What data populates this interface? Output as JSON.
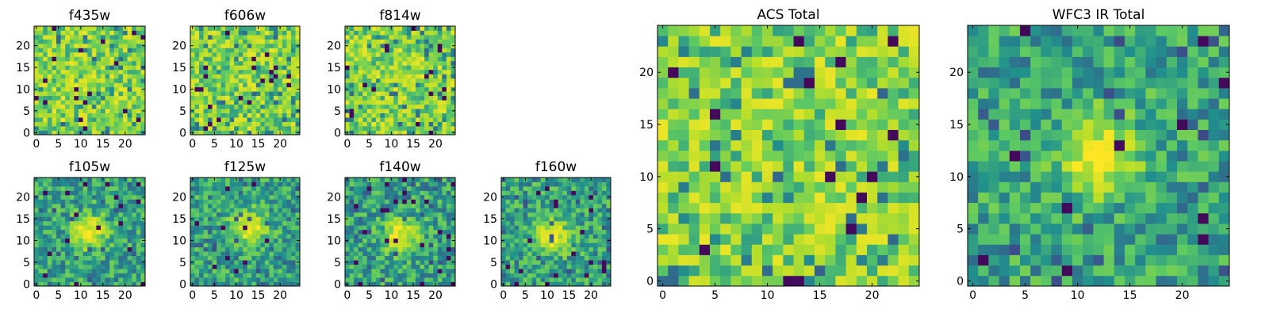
{
  "figure_title": "",
  "chart_data": [
    {
      "type": "heatmap",
      "title": "f435w",
      "grid_size": 25,
      "xticks": [
        0,
        5,
        10,
        15,
        20
      ],
      "yticks": [
        0,
        5,
        10,
        15,
        20
      ],
      "pattern": "noise",
      "seed": 11
    },
    {
      "type": "heatmap",
      "title": "f606w",
      "grid_size": 25,
      "xticks": [
        0,
        5,
        10,
        15,
        20
      ],
      "yticks": [
        0,
        5,
        10,
        15,
        20
      ],
      "pattern": "noise",
      "seed": 23
    },
    {
      "type": "heatmap",
      "title": "f814w",
      "grid_size": 25,
      "xticks": [
        0,
        5,
        10,
        15,
        20
      ],
      "yticks": [
        0,
        5,
        10,
        15,
        20
      ],
      "pattern": "noise",
      "seed": 37
    },
    {
      "type": "heatmap",
      "title": "f105w",
      "grid_size": 25,
      "xticks": [
        0,
        5,
        10,
        15,
        20
      ],
      "yticks": [
        0,
        5,
        10,
        15,
        20
      ],
      "pattern": "source",
      "source_center": [
        12,
        12
      ],
      "seed": 41
    },
    {
      "type": "heatmap",
      "title": "f125w",
      "grid_size": 25,
      "xticks": [
        0,
        5,
        10,
        15,
        20
      ],
      "yticks": [
        0,
        5,
        10,
        15,
        20
      ],
      "pattern": "source",
      "source_center": [
        13,
        13
      ],
      "seed": 53
    },
    {
      "type": "heatmap",
      "title": "f140w",
      "grid_size": 25,
      "xticks": [
        0,
        5,
        10,
        15,
        20
      ],
      "yticks": [
        0,
        5,
        10,
        15,
        20
      ],
      "pattern": "source",
      "source_center": [
        12,
        11
      ],
      "seed": 67
    },
    {
      "type": "heatmap",
      "title": "f160w",
      "grid_size": 25,
      "xticks": [
        0,
        5,
        10,
        15,
        20
      ],
      "yticks": [
        0,
        5,
        10,
        15,
        20
      ],
      "pattern": "source",
      "source_center": [
        11,
        11
      ],
      "seed": 79
    },
    {
      "type": "heatmap",
      "title": "ACS Total",
      "grid_size": 25,
      "xticks": [
        0,
        5,
        10,
        15,
        20
      ],
      "yticks": [
        0,
        5,
        10,
        15,
        20
      ],
      "pattern": "noise",
      "seed": 97
    },
    {
      "type": "heatmap",
      "title": "WFC3 IR Total",
      "grid_size": 25,
      "xticks": [
        0,
        5,
        10,
        15,
        20
      ],
      "yticks": [
        0,
        5,
        10,
        15,
        20
      ],
      "pattern": "source",
      "source_center": [
        12,
        12
      ],
      "seed": 113
    }
  ],
  "colormap": [
    "#440154",
    "#3b528b",
    "#21908d",
    "#5dc963",
    "#b5de2b",
    "#fde725"
  ]
}
